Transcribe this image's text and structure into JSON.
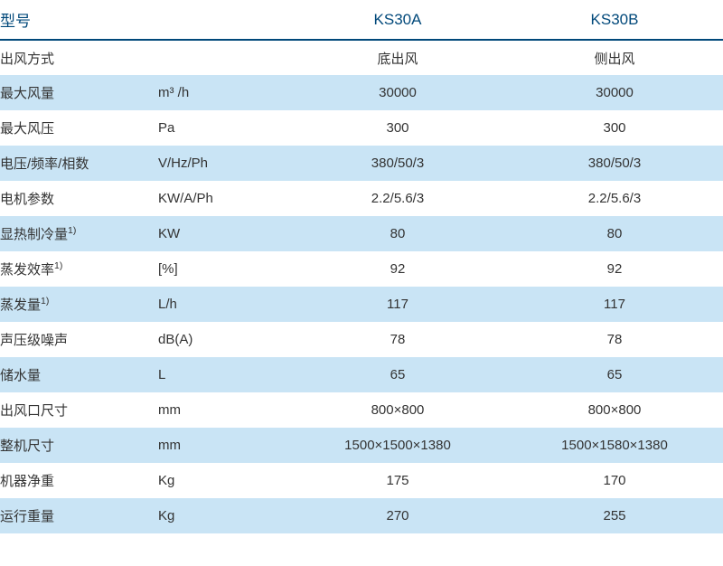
{
  "colors": {
    "header_text": "#00487a",
    "header_border": "#00487a",
    "body_text": "#333333",
    "row_odd_bg": "#ffffff",
    "row_even_bg": "#c9e4f5"
  },
  "columns": {
    "label": "型号",
    "unit": "",
    "model_a": "KS30A",
    "model_b": "KS30B"
  },
  "rows": [
    {
      "label": "出风方式",
      "label_sup": "",
      "unit": "",
      "a": "底出风",
      "b": "侧出风"
    },
    {
      "label": "最大风量",
      "label_sup": "",
      "unit": "m³ /h",
      "a": "30000",
      "b": "30000"
    },
    {
      "label": "最大风压",
      "label_sup": "",
      "unit": "Pa",
      "a": "300",
      "b": "300"
    },
    {
      "label": "电压/频率/相数",
      "label_sup": "",
      "unit": "V/Hz/Ph",
      "a": "380/50/3",
      "b": "380/50/3"
    },
    {
      "label": "电机参数",
      "label_sup": "",
      "unit": "KW/A/Ph",
      "a": "2.2/5.6/3",
      "b": "2.2/5.6/3"
    },
    {
      "label": "显热制冷量",
      "label_sup": "1)",
      "unit": "KW",
      "a": "80",
      "b": "80"
    },
    {
      "label": "蒸发效率",
      "label_sup": "1)",
      "unit": "[%]",
      "a": "92",
      "b": "92"
    },
    {
      "label": "蒸发量",
      "label_sup": "1)",
      "unit": "L/h",
      "a": "117",
      "b": "117"
    },
    {
      "label": "声压级噪声",
      "label_sup": "",
      "unit": "dB(A)",
      "a": "78",
      "b": "78"
    },
    {
      "label": "储水量",
      "label_sup": "",
      "unit": "L",
      "a": "65",
      "b": "65"
    },
    {
      "label": "出风口尺寸",
      "label_sup": "",
      "unit": "mm",
      "a": "800×800",
      "b": "800×800"
    },
    {
      "label": "整机尺寸",
      "label_sup": "",
      "unit": "mm",
      "a": "1500×1500×1380",
      "b": "1500×1580×1380"
    },
    {
      "label": "机器净重",
      "label_sup": "",
      "unit": "Kg",
      "a": "175",
      "b": "170"
    },
    {
      "label": "运行重量",
      "label_sup": "",
      "unit": "Kg",
      "a": "270",
      "b": "255"
    }
  ]
}
